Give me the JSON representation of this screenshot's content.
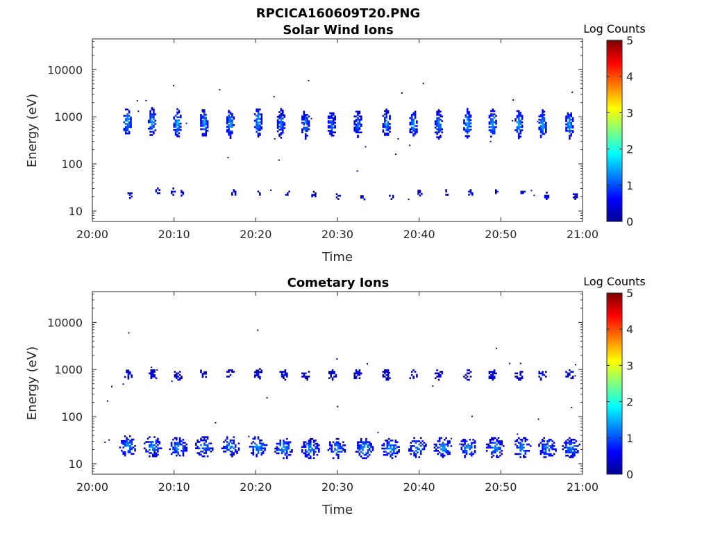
{
  "figure_title": "RPCICA160609T20.PNG",
  "colorbar": {
    "label": "Log Counts",
    "min": 0,
    "max": 5,
    "ticks": [
      "0",
      "1",
      "2",
      "3",
      "4",
      "5"
    ],
    "colormap": "jet"
  },
  "chart_data": [
    {
      "type": "heatmap",
      "title": "Solar Wind Ions",
      "xlabel": "Time",
      "ylabel": "Energy (eV)",
      "x_ticks": [
        "20:00",
        "20:10",
        "20:20",
        "20:30",
        "20:40",
        "20:50",
        "21:00"
      ],
      "x_range_minutes": [
        0,
        60
      ],
      "y_ticks": [
        "10",
        "100",
        "1000",
        "10000"
      ],
      "y_scale": "log",
      "y_range": [
        6,
        45000
      ],
      "bursts": [
        {
          "t": 4.2,
          "e": 800,
          "v": 1.6
        },
        {
          "t": 7.2,
          "e": 800,
          "v": 1.5
        },
        {
          "t": 10.3,
          "e": 750,
          "v": 1.6
        },
        {
          "t": 13.6,
          "e": 780,
          "v": 1.6
        },
        {
          "t": 16.8,
          "e": 750,
          "v": 1.5
        },
        {
          "t": 20.2,
          "e": 800,
          "v": 1.6
        },
        {
          "t": 23.0,
          "e": 760,
          "v": 1.4
        },
        {
          "t": 26.0,
          "e": 720,
          "v": 1.4
        },
        {
          "t": 29.2,
          "e": 720,
          "v": 1.2
        },
        {
          "t": 32.4,
          "e": 720,
          "v": 1.2
        },
        {
          "t": 35.9,
          "e": 740,
          "v": 1.5
        },
        {
          "t": 39.2,
          "e": 720,
          "v": 1.4
        },
        {
          "t": 42.3,
          "e": 720,
          "v": 1.4
        },
        {
          "t": 45.8,
          "e": 760,
          "v": 1.6
        },
        {
          "t": 48.9,
          "e": 740,
          "v": 1.6
        },
        {
          "t": 52.1,
          "e": 740,
          "v": 1.6
        },
        {
          "t": 55.0,
          "e": 720,
          "v": 1.5
        },
        {
          "t": 58.3,
          "e": 720,
          "v": 1.6
        }
      ],
      "low_energy": [
        {
          "t": 4.5,
          "e": 23,
          "v": 0.8
        },
        {
          "t": 7.9,
          "e": 27,
          "v": 0.7
        },
        {
          "t": 9.8,
          "e": 27,
          "v": 0.7
        },
        {
          "t": 10.8,
          "e": 24,
          "v": 0.7
        },
        {
          "t": 17.2,
          "e": 25,
          "v": 0.8
        },
        {
          "t": 20.4,
          "e": 25,
          "v": 0.8
        },
        {
          "t": 23.8,
          "e": 25,
          "v": 0.7
        },
        {
          "t": 27.0,
          "e": 23,
          "v": 0.7
        },
        {
          "t": 30.0,
          "e": 22,
          "v": 0.7
        },
        {
          "t": 33.0,
          "e": 20,
          "v": 0.8
        },
        {
          "t": 36.5,
          "e": 22,
          "v": 0.7
        },
        {
          "t": 40.0,
          "e": 26,
          "v": 0.7
        },
        {
          "t": 43.2,
          "e": 25,
          "v": 0.8
        },
        {
          "t": 46.2,
          "e": 25,
          "v": 0.8
        },
        {
          "t": 49.5,
          "e": 27,
          "v": 0.7
        },
        {
          "t": 52.6,
          "e": 27,
          "v": 0.7
        },
        {
          "t": 55.5,
          "e": 22,
          "v": 0.8
        },
        {
          "t": 59.0,
          "e": 22,
          "v": 0.8
        }
      ]
    },
    {
      "type": "heatmap",
      "title": "Cometary Ions",
      "xlabel": "Time",
      "ylabel": "Energy (eV)",
      "x_ticks": [
        "20:00",
        "20:10",
        "20:20",
        "20:30",
        "20:40",
        "20:50",
        "21:00"
      ],
      "x_range_minutes": [
        0,
        60
      ],
      "y_ticks": [
        "10",
        "100",
        "1000",
        "10000"
      ],
      "y_scale": "log",
      "y_range": [
        6,
        45000
      ],
      "bursts": [
        {
          "t": 4.3,
          "e": 25,
          "v": 1.4
        },
        {
          "t": 7.3,
          "e": 24,
          "v": 1.4
        },
        {
          "t": 10.4,
          "e": 23,
          "v": 1.4
        },
        {
          "t": 13.6,
          "e": 24,
          "v": 1.4
        },
        {
          "t": 16.8,
          "e": 24,
          "v": 1.4
        },
        {
          "t": 20.2,
          "e": 24,
          "v": 1.5
        },
        {
          "t": 23.3,
          "e": 22,
          "v": 1.5
        },
        {
          "t": 26.6,
          "e": 22,
          "v": 1.4
        },
        {
          "t": 29.8,
          "e": 22,
          "v": 1.4
        },
        {
          "t": 33.2,
          "e": 22,
          "v": 1.5
        },
        {
          "t": 36.4,
          "e": 22,
          "v": 1.5
        },
        {
          "t": 39.7,
          "e": 23,
          "v": 1.4
        },
        {
          "t": 42.8,
          "e": 23,
          "v": 1.5
        },
        {
          "t": 45.9,
          "e": 23,
          "v": 1.4
        },
        {
          "t": 49.2,
          "e": 23,
          "v": 1.4
        },
        {
          "t": 52.5,
          "e": 23,
          "v": 1.4
        },
        {
          "t": 55.6,
          "e": 23,
          "v": 1.4
        },
        {
          "t": 58.5,
          "e": 23,
          "v": 1.4
        }
      ],
      "high_energy": [
        {
          "t": 4.3,
          "e": 850,
          "v": 0.7
        },
        {
          "t": 7.3,
          "e": 800,
          "v": 0.7
        },
        {
          "t": 10.4,
          "e": 800,
          "v": 0.7
        },
        {
          "t": 13.6,
          "e": 850,
          "v": 0.7
        },
        {
          "t": 16.8,
          "e": 800,
          "v": 0.7
        },
        {
          "t": 20.2,
          "e": 850,
          "v": 0.7
        },
        {
          "t": 23.3,
          "e": 800,
          "v": 0.7
        },
        {
          "t": 26.0,
          "e": 800,
          "v": 0.6
        },
        {
          "t": 29.3,
          "e": 800,
          "v": 0.6
        },
        {
          "t": 32.4,
          "e": 800,
          "v": 0.6
        },
        {
          "t": 35.9,
          "e": 800,
          "v": 0.7
        },
        {
          "t": 39.2,
          "e": 800,
          "v": 0.6
        },
        {
          "t": 42.3,
          "e": 800,
          "v": 0.6
        },
        {
          "t": 45.8,
          "e": 800,
          "v": 0.7
        },
        {
          "t": 48.9,
          "e": 800,
          "v": 0.7
        },
        {
          "t": 52.1,
          "e": 800,
          "v": 0.7
        },
        {
          "t": 55.0,
          "e": 800,
          "v": 0.7
        },
        {
          "t": 58.3,
          "e": 800,
          "v": 0.7
        }
      ]
    }
  ]
}
